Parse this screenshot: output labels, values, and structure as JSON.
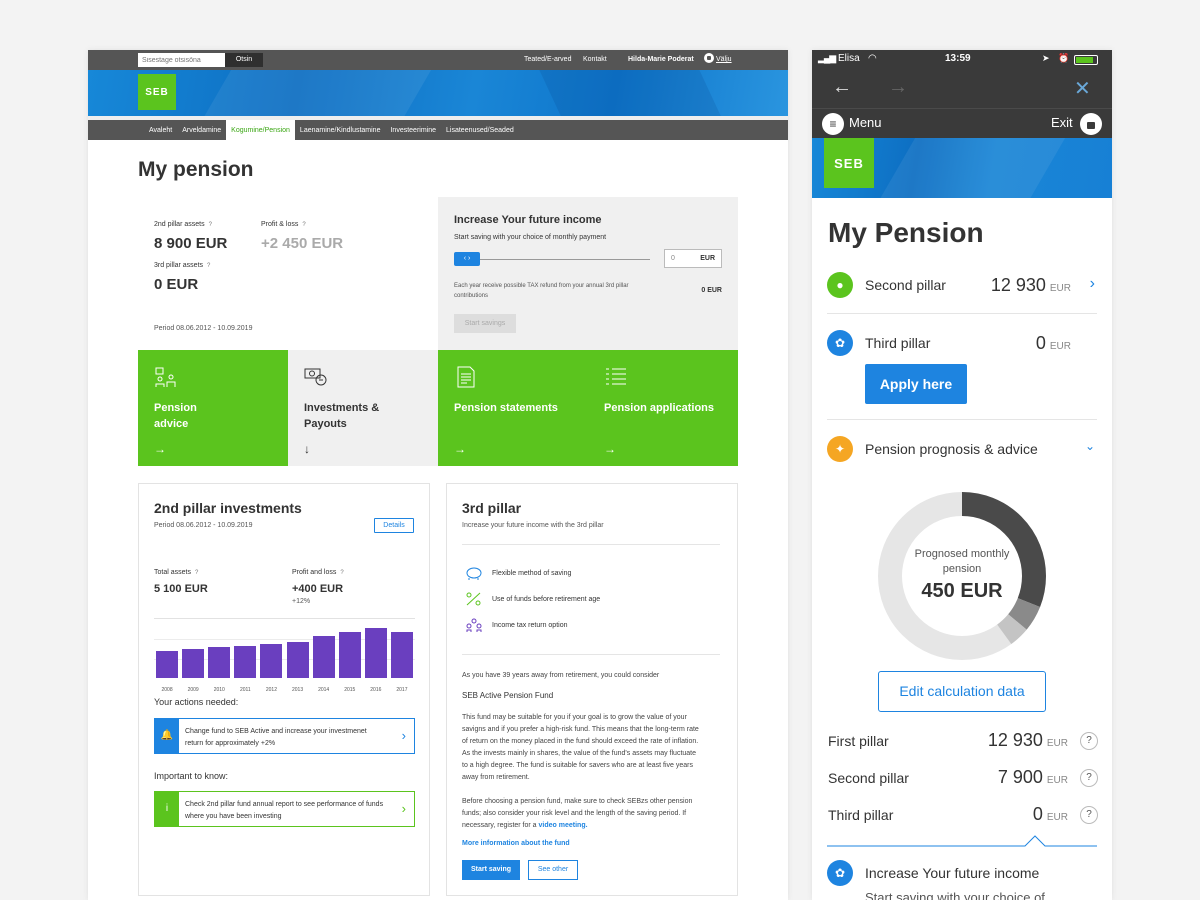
{
  "desktop": {
    "topbar": {
      "search_placeholder": "Sisestage otsisõna",
      "search_button": "Otsin",
      "links": [
        "Teated/E-arved",
        "Kontakt"
      ],
      "user": "Hilda-Marie Poderat",
      "logout": "Välju"
    },
    "logo": "SEB",
    "nav": [
      "Avaleht",
      "Arveldamine",
      "Kogumine/Pension",
      "Laenamine/Kindlustamine",
      "Investeerimine",
      "Lisateenused/Seaded"
    ],
    "page_title": "My pension",
    "summary": {
      "second_pillar_label": "2nd pillar assets",
      "second_pillar_value": "8 900 EUR",
      "profit_label": "Profit & loss",
      "profit_value": "+2 450 EUR",
      "third_pillar_label": "3rd pillar assets",
      "third_pillar_value": "0 EUR",
      "period": "Period 08.06.2012 - 10.09.2019",
      "help": "?"
    },
    "income": {
      "title": "Increase Your future income",
      "subtitle": "Start saving with your choice of monthly payment",
      "amount_value": "0",
      "amount_currency": "EUR",
      "tax_note": "Each year receive possible TAX refund from your annual 3rd pillar contributions",
      "tax_value": "0 EUR",
      "start_button": "Start savings"
    },
    "tiles": [
      {
        "label": "Pension advice",
        "arrow": "→"
      },
      {
        "label": "Investments & Payouts",
        "arrow": "↓"
      },
      {
        "label": "Pension statements",
        "arrow": "→"
      },
      {
        "label": "Pension applications",
        "arrow": "→"
      }
    ],
    "second_pillar_card": {
      "title": "2nd pillar investments",
      "period": "Period 08.06.2012 - 10.09.2019",
      "details_button": "Details",
      "total_label": "Total assets",
      "total_value": "5 100 EUR",
      "profit_label": "Profit and loss",
      "profit_value": "+400 EUR",
      "profit_pct": "+12%",
      "actions_heading": "Your actions needed:",
      "action_text": "Change fund to SEB Active and increase your investmenet return for approximately +2%",
      "important_heading": "Important to know:",
      "important_text": "Check 2nd pillar fund annual report to see performance of funds where you have been investing"
    },
    "chart_data": {
      "type": "bar",
      "title": "",
      "categories": [
        "2008",
        "2009",
        "2010",
        "2011",
        "2012",
        "2013",
        "2014",
        "2015",
        "2016",
        "2017"
      ],
      "values": [
        27,
        29,
        31,
        32,
        34,
        36,
        42,
        46,
        50,
        46
      ],
      "ylim": [
        0,
        60
      ],
      "color": "#6a3fbf"
    },
    "third_pillar_card": {
      "title": "3rd pillar",
      "subtitle": "Increase your future income with the 3rd pillar",
      "features": [
        "Flexible method of saving",
        "Use of funds before retirement age",
        "Income tax return option"
      ],
      "intro": "As you have 39 years away from retirement, you could consider",
      "fund_name": "SEB Active Pension Fund",
      "fund_description": "This fund may be suitable for you if your goal is to grow the value of your savigns and if you prefer a high-risk fund. This means that the long-term rate of return on the money placed in the fund should exceed the rate of inflation. As the invests mainly in shares, the value of the fund's assets may fluctuate to a high degree. The fund is suitable for savers who are at least five years away from retirement.",
      "advice_text": "Before choosing a pension fund, make sure to check SEBzs other pension funds; also consider your risk level and the length of the saving period. If necessary, register for a",
      "video_link": "video meeting.",
      "more_link": "More information about the fund",
      "start_button": "Start saving",
      "other_button": "See other"
    }
  },
  "mobile": {
    "status": {
      "carrier": "Elisa",
      "time": "13:59"
    },
    "menu_label": "Menu",
    "exit_label": "Exit",
    "logo": "SEB",
    "title": "My Pension",
    "second_pillar": {
      "label": "Second pillar",
      "value": "12 930",
      "currency": "EUR"
    },
    "third_pillar": {
      "label": "Third pillar",
      "value": "0",
      "currency": "EUR"
    },
    "apply_button": "Apply here",
    "prognosis_label": "Pension prognosis & advice",
    "donut": {
      "caption": "Prognosed monthly pension",
      "value": "450 EUR",
      "segments": [
        0.31,
        0.05,
        0.04
      ]
    },
    "edit_button": "Edit calculation data",
    "summary": [
      {
        "label": "First pillar",
        "value": "12 930",
        "currency": "EUR"
      },
      {
        "label": "Second pillar",
        "value": "7 900",
        "currency": "EUR"
      },
      {
        "label": "Third pillar",
        "value": "0",
        "currency": "EUR"
      }
    ],
    "help": "?",
    "increase": {
      "title": "Increase Your future income",
      "subtitle": "Start saving with your choice of"
    }
  }
}
